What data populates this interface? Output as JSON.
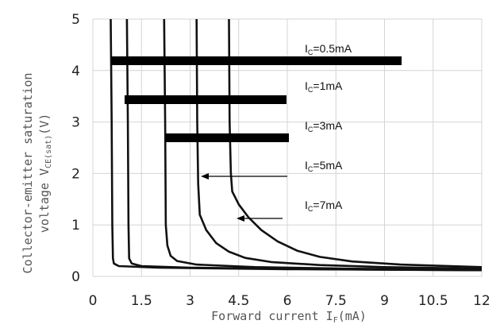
{
  "chart_data": {
    "type": "line",
    "title": "",
    "xlabel": "Forward current I",
    "xlabel_sub": "F",
    "xlabel_unit": "(mA)",
    "ylabel_line1": "Collector-emitter saturation",
    "ylabel_line2": "voltage V",
    "ylabel_sub": "CE(sat)",
    "ylabel_unit": "(V)",
    "xlim": [
      0,
      12
    ],
    "ylim": [
      0,
      5
    ],
    "x_ticks": [
      "0",
      "1.5",
      "3",
      "4.5",
      "6",
      "7.5",
      "9",
      "10.5",
      "12"
    ],
    "y_ticks": [
      "0",
      "1",
      "2",
      "3",
      "4",
      "5"
    ],
    "grid": true,
    "legend_placement": "right",
    "series": [
      {
        "name": "I",
        "name_sub": "C",
        "name_value": "=0.5mA",
        "points": [
          [
            0.55,
            5
          ],
          [
            0.58,
            3
          ],
          [
            0.6,
            1
          ],
          [
            0.62,
            0.35
          ],
          [
            0.65,
            0.25
          ],
          [
            0.8,
            0.2
          ],
          [
            2,
            0.17
          ],
          [
            6,
            0.14
          ],
          [
            12,
            0.12
          ]
        ]
      },
      {
        "name": "I",
        "name_sub": "C",
        "name_value": "=1mA",
        "points": [
          [
            1.05,
            5
          ],
          [
            1.08,
            3
          ],
          [
            1.1,
            1
          ],
          [
            1.12,
            0.35
          ],
          [
            1.2,
            0.25
          ],
          [
            1.5,
            0.2
          ],
          [
            3,
            0.17
          ],
          [
            7,
            0.14
          ],
          [
            12,
            0.12
          ]
        ]
      },
      {
        "name": "I",
        "name_sub": "C",
        "name_value": "=3mA",
        "points": [
          [
            2.2,
            5
          ],
          [
            2.23,
            3
          ],
          [
            2.25,
            1
          ],
          [
            2.3,
            0.6
          ],
          [
            2.4,
            0.4
          ],
          [
            2.6,
            0.3
          ],
          [
            3.2,
            0.23
          ],
          [
            5,
            0.18
          ],
          [
            8,
            0.15
          ],
          [
            12,
            0.13
          ]
        ]
      },
      {
        "name": "I",
        "name_sub": "C",
        "name_value": "=5mA",
        "points": [
          [
            3.2,
            5
          ],
          [
            3.22,
            3
          ],
          [
            3.25,
            1.8
          ],
          [
            3.3,
            1.2
          ],
          [
            3.5,
            0.9
          ],
          [
            3.8,
            0.65
          ],
          [
            4.2,
            0.48
          ],
          [
            4.7,
            0.36
          ],
          [
            5.5,
            0.28
          ],
          [
            7,
            0.22
          ],
          [
            9,
            0.18
          ],
          [
            12,
            0.15
          ]
        ]
      },
      {
        "name": "I",
        "name_sub": "C",
        "name_value": "=7mA",
        "points": [
          [
            4.2,
            5
          ],
          [
            4.22,
            3
          ],
          [
            4.26,
            2
          ],
          [
            4.3,
            1.65
          ],
          [
            4.5,
            1.4
          ],
          [
            4.8,
            1.15
          ],
          [
            5.2,
            0.9
          ],
          [
            5.7,
            0.68
          ],
          [
            6.3,
            0.5
          ],
          [
            7,
            0.38
          ],
          [
            8,
            0.29
          ],
          [
            9.5,
            0.23
          ],
          [
            12,
            0.18
          ]
        ]
      }
    ]
  },
  "colors": {
    "curve": "#111111",
    "grid": "#d4d4d4",
    "redaction_bar": "#000000"
  }
}
